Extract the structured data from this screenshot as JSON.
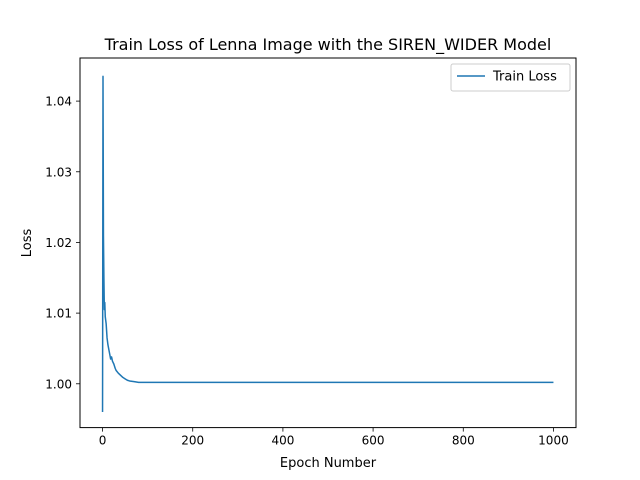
{
  "chart_data": {
    "type": "line",
    "title": "Train Loss of Lenna Image with the SIREN_WIDER Model",
    "xlabel": "Epoch Number",
    "ylabel": "Loss",
    "xlim": [
      -50,
      1050
    ],
    "ylim": [
      0.9938,
      1.0461
    ],
    "xticks": [
      0,
      200,
      400,
      600,
      800,
      1000
    ],
    "xtick_labels": [
      "0",
      "200",
      "400",
      "600",
      "800",
      "1000"
    ],
    "yticks": [
      1.0,
      1.01,
      1.02,
      1.03,
      1.04
    ],
    "ytick_labels": [
      "1.00",
      "1.01",
      "1.02",
      "1.03",
      "1.04"
    ],
    "grid": false,
    "legend_position": "top-right",
    "series": [
      {
        "name": "Train Loss",
        "color": "#1f77b4",
        "x": [
          0,
          1,
          2,
          3,
          4,
          5,
          6,
          8,
          10,
          12,
          15,
          18,
          20,
          22,
          25,
          28,
          30,
          35,
          40,
          45,
          50,
          55,
          60,
          70,
          80,
          90,
          100,
          120,
          150,
          200,
          300,
          400,
          500,
          600,
          700,
          800,
          900,
          1000
        ],
        "values": [
          0.996,
          1.0435,
          1.021,
          1.015,
          1.0105,
          1.0115,
          1.0095,
          1.0085,
          1.0065,
          1.0055,
          1.0045,
          1.0035,
          1.0038,
          1.0032,
          1.0028,
          1.0022,
          1.0019,
          1.0015,
          1.0012,
          1.0009,
          1.0007,
          1.0005,
          1.0004,
          1.0003,
          1.0002,
          1.0002,
          1.0002,
          1.0002,
          1.0002,
          1.0002,
          1.0002,
          1.0002,
          1.0002,
          1.0002,
          1.0002,
          1.0002,
          1.0002,
          1.0002
        ]
      }
    ]
  }
}
